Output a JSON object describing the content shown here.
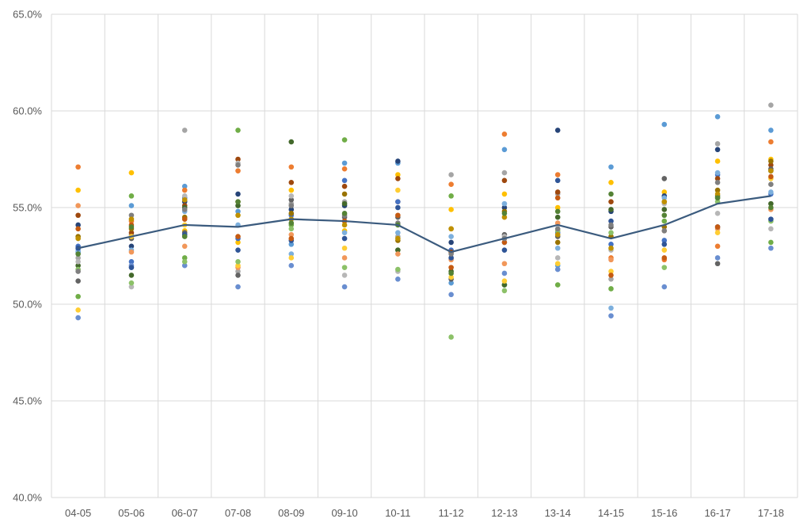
{
  "chart_data": {
    "type": "scatter",
    "title": "",
    "xlabel": "",
    "ylabel": "",
    "categories": [
      "04-05",
      "05-06",
      "06-07",
      "07-08",
      "08-09",
      "09-10",
      "10-11",
      "11-12",
      "12-13",
      "13-14",
      "14-15",
      "15-16",
      "16-17",
      "17-18"
    ],
    "y_ticks": [
      "40.0%",
      "45.0%",
      "50.0%",
      "55.0%",
      "60.0%",
      "65.0%"
    ],
    "ylim": [
      40,
      65
    ],
    "grid": true,
    "legend": "none",
    "series": [
      {
        "color": "#5b9bd5",
        "values": [
          52.7,
          55.1,
          56.1,
          54.8,
          53.1,
          57.3,
          57.3,
          51.1,
          58.0,
          52.0,
          57.1,
          59.3,
          59.7,
          59.0
        ]
      },
      {
        "color": "#ed7d31",
        "values": [
          57.1,
          54.3,
          55.9,
          56.9,
          57.1,
          57.0,
          55.3,
          56.2,
          58.8,
          56.7,
          52.4,
          52.3,
          53.0,
          58.4
        ]
      },
      {
        "color": "#a5a5a5",
        "values": [
          52.4,
          53.6,
          59.0,
          51.7,
          55.2,
          55.3,
          53.5,
          56.7,
          56.8,
          55.7,
          51.3,
          56.5,
          58.3,
          60.3
        ]
      },
      {
        "color": "#ffc000",
        "values": [
          55.9,
          56.8,
          53.8,
          53.2,
          55.9,
          53.8,
          56.7,
          54.9,
          55.7,
          55.0,
          56.3,
          55.8,
          57.4,
          57.5
        ]
      },
      {
        "color": "#4472c4",
        "values": [
          53.0,
          52.2,
          55.5,
          53.4,
          54.6,
          56.4,
          55.3,
          52.8,
          53.2,
          53.7,
          53.1,
          53.3,
          56.7,
          55.7
        ]
      },
      {
        "color": "#70ad47",
        "values": [
          50.4,
          55.6,
          52.4,
          59.0,
          54.1,
          58.5,
          52.8,
          55.6,
          51.0,
          51.0,
          50.8,
          54.3,
          55.5,
          53.2
        ]
      },
      {
        "color": "#264478",
        "values": [
          54.1,
          53.0,
          55.3,
          55.7,
          54.9,
          55.1,
          57.4,
          53.2,
          55.0,
          59.0,
          54.8,
          55.6,
          58.0,
          56.9
        ]
      },
      {
        "color": "#9e480e",
        "values": [
          54.6,
          53.7,
          55.1,
          57.5,
          56.3,
          56.1,
          56.5,
          52.7,
          56.4,
          55.8,
          55.3,
          55.3,
          56.5,
          57.2
        ]
      },
      {
        "color": "#636363",
        "values": [
          51.2,
          53.4,
          53.7,
          51.5,
          55.4,
          54.5,
          54.5,
          51.3,
          53.6,
          53.5,
          54.0,
          56.5,
          52.1,
          57.0
        ]
      },
      {
        "color": "#997300",
        "values": [
          53.5,
          53.9,
          54.5,
          55.3,
          54.7,
          55.7,
          53.3,
          53.9,
          54.8,
          53.2,
          53.5,
          54.0,
          55.9,
          57.4
        ]
      },
      {
        "color": "#43682b",
        "values": [
          52.0,
          51.5,
          55.0,
          55.1,
          58.4,
          55.2,
          52.8,
          51.7,
          51.0,
          54.5,
          54.9,
          54.9,
          55.6,
          55.2
        ]
      },
      {
        "color": "#7cafdd",
        "values": [
          52.8,
          52.8,
          54.8,
          54.1,
          52.6,
          53.7,
          53.7,
          53.5,
          55.2,
          52.9,
          49.8,
          55.5,
          56.8,
          55.8
        ]
      },
      {
        "color": "#f1975a",
        "values": [
          55.1,
          52.7,
          53.0,
          51.9,
          53.6,
          52.4,
          52.6,
          52.3,
          52.1,
          54.2,
          52.3,
          53.8,
          53.9,
          54.9
        ]
      },
      {
        "color": "#b7b7b7",
        "values": [
          52.2,
          50.9,
          55.6,
          57.3,
          55.6,
          51.5,
          51.7,
          52.4,
          53.5,
          52.4,
          52.8,
          55.2,
          54.7,
          53.9
        ]
      },
      {
        "color": "#ffcd33",
        "values": [
          49.7,
          53.5,
          54.1,
          52.0,
          52.4,
          52.9,
          55.9,
          51.4,
          51.2,
          52.1,
          51.7,
          52.8,
          53.7,
          56.5
        ]
      },
      {
        "color": "#698ed0",
        "values": [
          49.3,
          52.0,
          52.0,
          50.9,
          52.0,
          50.9,
          51.3,
          50.5,
          51.6,
          51.8,
          49.4,
          50.9,
          52.4,
          52.9
        ]
      },
      {
        "color": "#8cc168",
        "values": [
          51.8,
          51.1,
          52.2,
          52.2,
          53.9,
          51.9,
          51.8,
          48.3,
          50.7,
          53.8,
          53.7,
          51.9,
          55.3,
          54.3
        ]
      },
      {
        "color": "#2f5597",
        "values": [
          52.9,
          51.9,
          53.6,
          52.8,
          53.3,
          53.4,
          55.0,
          52.4,
          52.8,
          56.4,
          54.3,
          53.1,
          54.0,
          54.4
        ]
      },
      {
        "color": "#c55a11",
        "values": [
          53.9,
          54.1,
          54.4,
          53.5,
          53.4,
          54.3,
          54.6,
          51.9,
          53.2,
          55.5,
          51.5,
          52.4,
          54.0,
          56.6
        ]
      },
      {
        "color": "#7f7f7f",
        "values": [
          51.7,
          54.6,
          54.9,
          57.2,
          55.1,
          54.6,
          54.2,
          52.6,
          53.4,
          53.9,
          54.1,
          53.8,
          56.3,
          56.2
        ]
      },
      {
        "color": "#bf9000",
        "values": [
          53.4,
          54.4,
          55.4,
          54.6,
          54.4,
          54.1,
          53.4,
          53.9,
          54.5,
          53.6,
          52.9,
          55.3,
          55.7,
          56.9
        ]
      },
      {
        "color": "#548235",
        "values": [
          52.6,
          54.0,
          53.5,
          55.3,
          54.2,
          54.7,
          54.1,
          51.6,
          54.7,
          54.8,
          55.7,
          54.6,
          55.5,
          55.0
        ]
      }
    ],
    "average_line": {
      "color": "#3b5b7e",
      "values": [
        52.9,
        53.5,
        54.1,
        54.0,
        54.4,
        54.3,
        54.1,
        52.7,
        53.4,
        54.1,
        53.4,
        54.1,
        55.2,
        55.6
      ]
    }
  }
}
